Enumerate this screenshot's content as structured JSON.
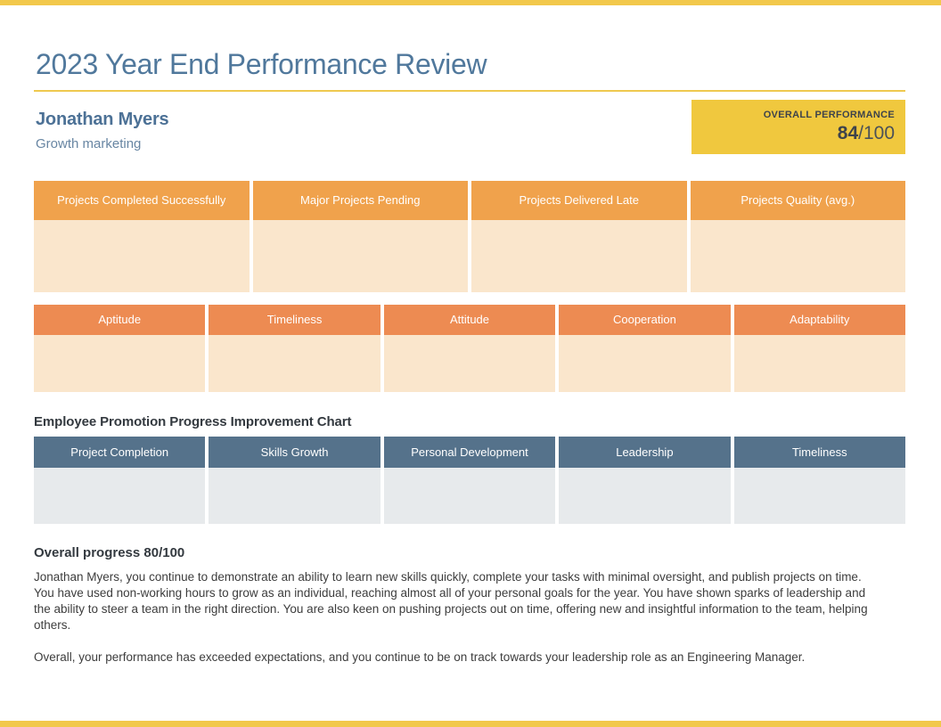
{
  "header": {
    "title": "2023 Year End Performance Review",
    "employee_name": "Jonathan Myers",
    "employee_role": "Growth marketing",
    "overall_label": "OVERALL PERFORMANCE",
    "overall_score": "84",
    "overall_total": "/100"
  },
  "stat_cards": [
    {
      "label": "Projects Completed Successfully"
    },
    {
      "label": "Major Projects Pending"
    },
    {
      "label": "Projects Delivered Late"
    },
    {
      "label": "Projects Quality (avg.)"
    }
  ],
  "trait_cards": [
    {
      "label": "Aptitude"
    },
    {
      "label": "Timeliness"
    },
    {
      "label": "Attitude"
    },
    {
      "label": "Cooperation"
    },
    {
      "label": "Adaptability"
    }
  ],
  "promotion": {
    "heading": "Employee Promotion Progress Improvement Chart",
    "cards": [
      {
        "label": "Project Completion"
      },
      {
        "label": "Skills Growth"
      },
      {
        "label": "Personal Development"
      },
      {
        "label": "Leadership"
      },
      {
        "label": "Timeliness"
      }
    ]
  },
  "summary": {
    "heading": "Overall progress 80/100",
    "paragraph_1": "Jonathan Myers, you continue to demonstrate an ability to learn new skills quickly, complete your tasks with minimal oversight, and publish projects on time. You have used non-working hours to grow as an individual, reaching almost all of your personal goals for the year. You have shown sparks of leadership and the ability to steer a team in the right direction. You are also keen on pushing projects out on time, offering new and insightful information to the team, helping others.",
    "paragraph_2": "Overall, your performance has exceeded expectations, and you continue to be on track towards your leadership role as an Engineering Manager."
  },
  "colors": {
    "accent_yellow": "#F2C84B",
    "score_box_yellow": "#F0C83E",
    "stat_header_orange": "#F0A24C",
    "trait_header_coral": "#ED8B52",
    "peach_body": "#FAE6CC",
    "promo_header_slate": "#55728B",
    "promo_body_gray": "#E7EAEC",
    "title_blue": "#50789C",
    "name_blue": "#4C7196",
    "role_blue": "#6886A3",
    "text_dark": "#3D3D3D"
  }
}
